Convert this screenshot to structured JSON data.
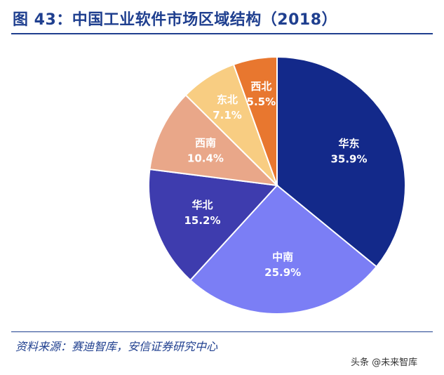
{
  "title": "图 43：中国工业软件市场区域结构（2018）",
  "source": "资料来源：赛迪智库，安信证券研究中心",
  "watermark": "头条 @未来智库",
  "chart_data": {
    "type": "pie",
    "title": "图 43：中国工业软件市场区域结构（2018）",
    "start": "east region slice begins at the top, proceeding clockwise",
    "slices": [
      {
        "name": "华东",
        "value": 35.9,
        "label": "35.9%",
        "color": "#13298a",
        "text_color": "#ffffff"
      },
      {
        "name": "中南",
        "value": 25.9,
        "label": "25.9%",
        "color": "#7b7ef5",
        "text_color": "#ffffff"
      },
      {
        "name": "华北",
        "value": 15.2,
        "label": "15.2%",
        "color": "#3e3cae",
        "text_color": "#ffffff"
      },
      {
        "name": "西南",
        "value": 10.4,
        "label": "10.4%",
        "color": "#e9a789",
        "text_color": "#ffffff"
      },
      {
        "name": "东北",
        "value": 7.1,
        "label": "7.1%",
        "color": "#f8cd82",
        "text_color": "#ffffff"
      },
      {
        "name": "西北",
        "value": 5.5,
        "label": "5.5%",
        "color": "#e8772f",
        "text_color": "#ffffff"
      }
    ]
  }
}
